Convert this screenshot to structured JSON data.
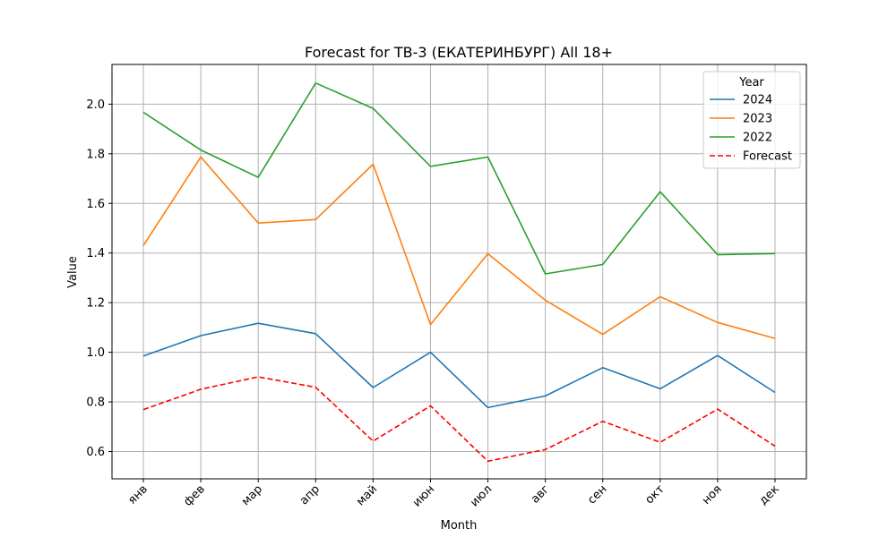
{
  "chart_data": {
    "type": "line",
    "title": "Forecast for ТВ-3 (ЕКАТЕРИНБУРГ) All 18+",
    "xlabel": "Month",
    "ylabel": "Value",
    "categories": [
      "янв",
      "фев",
      "мар",
      "апр",
      "май",
      "июн",
      "июл",
      "авг",
      "сен",
      "окт",
      "ноя",
      "дек"
    ],
    "ylim": [
      0.49,
      2.16
    ],
    "yticks": [
      "0.6",
      "0.8",
      "1.0",
      "1.2",
      "1.4",
      "1.6",
      "1.8",
      "2.0"
    ],
    "grid": true,
    "legend": {
      "title": "Year",
      "position": "top-right"
    },
    "series": [
      {
        "name": "2024",
        "color": "#1f77b4",
        "style": "solid",
        "values": [
          0.985,
          1.067,
          1.117,
          1.075,
          0.858,
          1.0,
          0.777,
          0.824,
          0.938,
          0.853,
          0.987,
          0.838
        ]
      },
      {
        "name": "2023",
        "color": "#ff7f0e",
        "style": "solid",
        "values": [
          1.43,
          1.787,
          1.521,
          1.535,
          1.758,
          1.112,
          1.397,
          1.21,
          1.072,
          1.224,
          1.12,
          1.056
        ]
      },
      {
        "name": "2022",
        "color": "#2ca02c",
        "style": "solid",
        "values": [
          1.967,
          1.815,
          1.705,
          2.085,
          1.983,
          1.749,
          1.787,
          1.316,
          1.354,
          1.647,
          1.393,
          1.398
        ]
      },
      {
        "name": "Forecast",
        "color": "#ff0000",
        "style": "dashed",
        "values": [
          0.769,
          0.851,
          0.901,
          0.859,
          0.642,
          0.784,
          0.561,
          0.608,
          0.722,
          0.637,
          0.771,
          0.622
        ]
      }
    ]
  }
}
